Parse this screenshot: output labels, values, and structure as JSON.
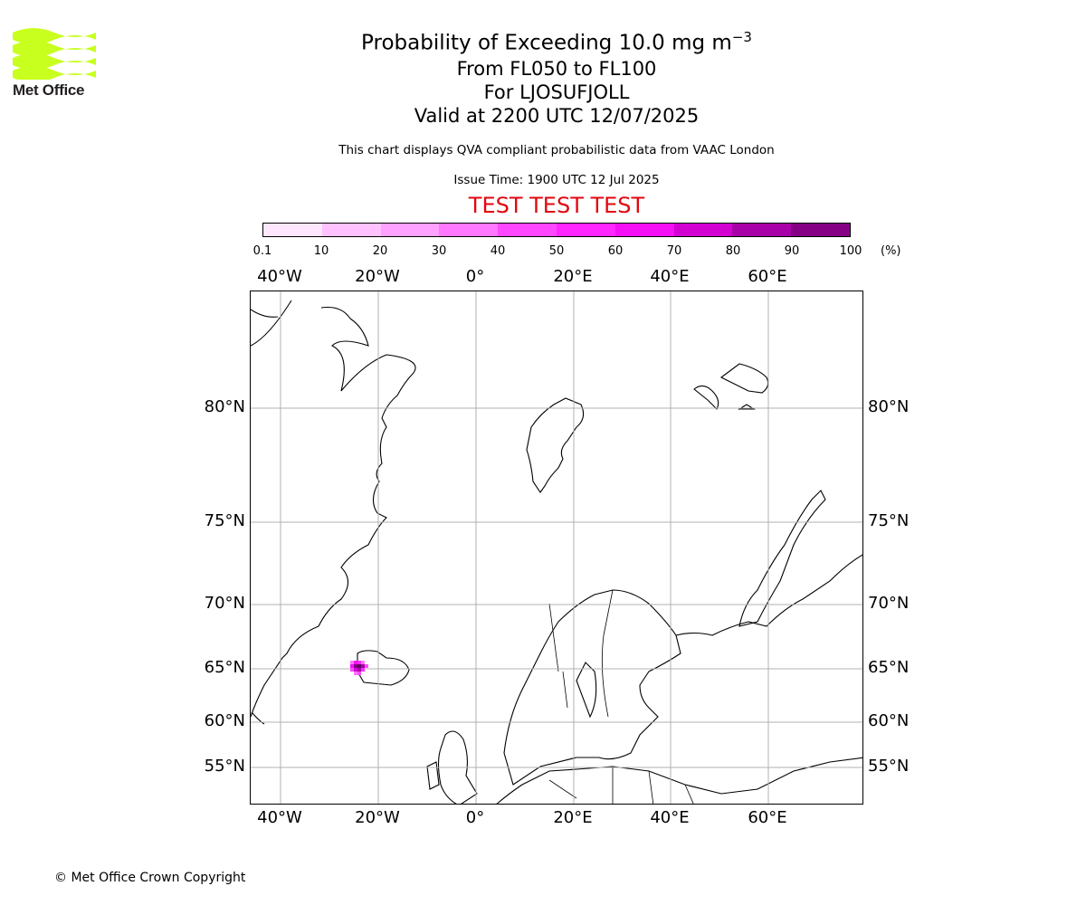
{
  "logo": {
    "text": "Met Office",
    "color": "#c8ff1e"
  },
  "title": {
    "main_prefix": "Probability of Exceeding 10.0 mg m",
    "main_sup": "−3",
    "flight_levels": "From FL050 to FL100",
    "location": "For LJOSUFJOLL",
    "valid": "Valid at 2200 UTC 12/07/2025"
  },
  "notes": {
    "compliance": "This chart displays QVA compliant probabilistic data from VAAC London",
    "issue_time": "Issue Time: 1900 UTC 12 Jul 2025",
    "test_banner": "TEST TEST TEST"
  },
  "colorbar": {
    "ticks": [
      "0.1",
      "10",
      "20",
      "30",
      "40",
      "50",
      "60",
      "70",
      "80",
      "90",
      "100"
    ],
    "unit": "(%)",
    "colors": [
      "#ffe6ff",
      "#ffc2ff",
      "#ffa1ff",
      "#ff78ff",
      "#ff47ff",
      "#ff26ff",
      "#f50ff5",
      "#d100d1",
      "#a800a8",
      "#850085",
      "#5e005e"
    ]
  },
  "map": {
    "lon_labels": [
      "40°W",
      "20°W",
      "0°",
      "20°E",
      "40°E",
      "60°E"
    ],
    "lat_labels": [
      "80°N",
      "75°N",
      "70°N",
      "65°N",
      "60°N",
      "55°N"
    ]
  },
  "chart_data": {
    "type": "heatmap",
    "title": "Probability of Exceeding 10.0 mg m−3",
    "subtitle": [
      "From FL050 to FL100",
      "For LJOSUFJOLL",
      "Valid at 2200 UTC 12/07/2025"
    ],
    "lon_range": [
      -46,
      79
    ],
    "lat_range": [
      51.5,
      84
    ],
    "unit": "(%)",
    "plume": {
      "source": "LJOSUFJOLL",
      "center": [
        -23.5,
        64.9
      ],
      "peak_probability": 100
    },
    "grid": true
  },
  "copyright": "© Met Office Crown Copyright"
}
